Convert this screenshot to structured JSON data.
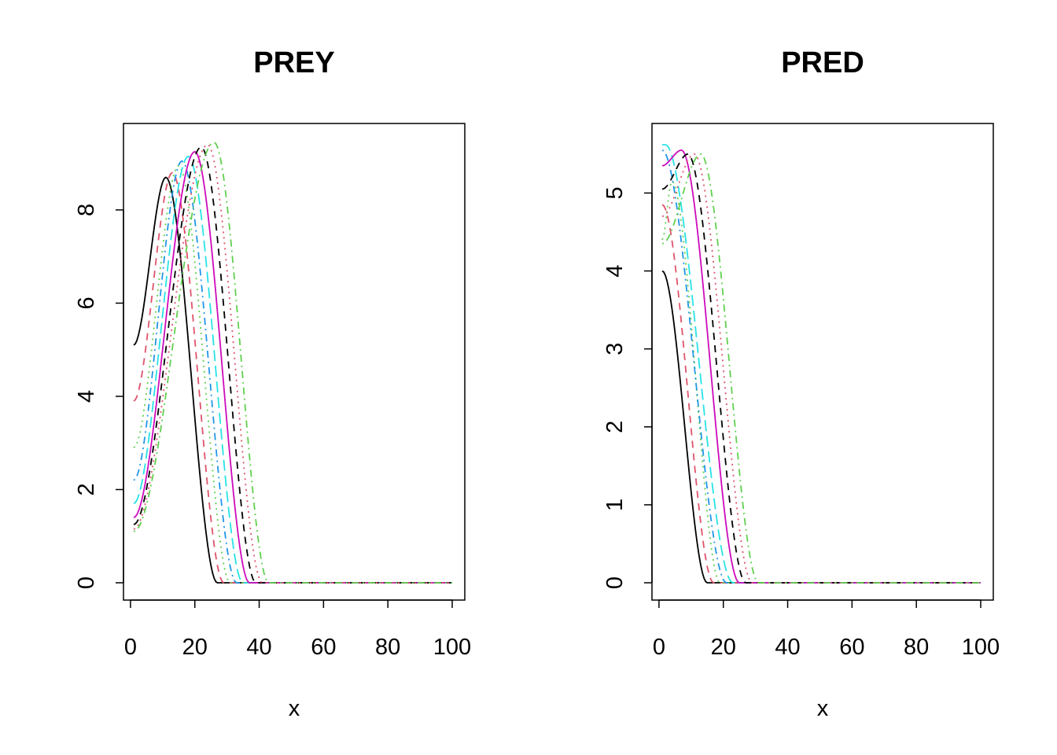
{
  "chart_data": [
    {
      "type": "line",
      "title": "PREY",
      "xlabel": "x",
      "ylabel": "",
      "xlim": [
        1,
        100
      ],
      "ylim": [
        0,
        9.45
      ],
      "xticks": [
        "0",
        "20",
        "40",
        "60",
        "80",
        "100"
      ],
      "yticks": [
        "0",
        "2",
        "4",
        "6",
        "8"
      ],
      "grid": false,
      "series": [
        {
          "color": "#000000",
          "dash": "solid",
          "initial": 5.1,
          "peak_x": 11,
          "peak_y": 8.7,
          "decay_end_x": 27
        },
        {
          "color": "#DF536B",
          "dash": "dashed",
          "initial": 3.9,
          "peak_x": 13,
          "peak_y": 8.8,
          "decay_end_x": 29
        },
        {
          "color": "#61D04F",
          "dash": "dotted",
          "initial": 2.9,
          "peak_x": 15,
          "peak_y": 8.95,
          "decay_end_x": 31
        },
        {
          "color": "#2297E6",
          "dash": "dotdash",
          "initial": 2.2,
          "peak_x": 16,
          "peak_y": 9.05,
          "decay_end_x": 33
        },
        {
          "color": "#28E2E5",
          "dash": "longdash",
          "initial": 1.7,
          "peak_x": 18,
          "peak_y": 9.15,
          "decay_end_x": 35
        },
        {
          "color": "#CD0BBC",
          "dash": "solid",
          "initial": 1.4,
          "peak_x": 20,
          "peak_y": 9.25,
          "decay_end_x": 37
        },
        {
          "color": "#000000",
          "dash": "dashed",
          "initial": 1.25,
          "peak_x": 22,
          "peak_y": 9.35,
          "decay_end_x": 39
        },
        {
          "color": "#DF536B",
          "dash": "dotted",
          "initial": 1.15,
          "peak_x": 24,
          "peak_y": 9.4,
          "decay_end_x": 41
        },
        {
          "color": "#61D04F",
          "dash": "dotdash",
          "initial": 1.1,
          "peak_x": 26,
          "peak_y": 9.45,
          "decay_end_x": 43
        }
      ]
    },
    {
      "type": "line",
      "title": "PRED",
      "xlabel": "x",
      "ylabel": "",
      "xlim": [
        1,
        100
      ],
      "ylim": [
        0,
        5.65
      ],
      "xticks": [
        "0",
        "20",
        "40",
        "60",
        "80",
        "100"
      ],
      "yticks": [
        "0",
        "1",
        "2",
        "3",
        "4",
        "5"
      ],
      "grid": false,
      "series": [
        {
          "color": "#000000",
          "dash": "solid",
          "initial": 4.0,
          "peak_x": 1,
          "peak_y": 4.0,
          "decay_end_x": 15
        },
        {
          "color": "#DF536B",
          "dash": "dashed",
          "initial": 4.85,
          "peak_x": 1,
          "peak_y": 4.85,
          "decay_end_x": 17
        },
        {
          "color": "#61D04F",
          "dash": "dotted",
          "initial": 4.4,
          "peak_x": 4,
          "peak_y": 5.15,
          "decay_end_x": 19
        },
        {
          "color": "#2297E6",
          "dash": "dotdash",
          "initial": 5.55,
          "peak_x": 1,
          "peak_y": 5.55,
          "decay_end_x": 21
        },
        {
          "color": "#28E2E5",
          "dash": "longdash",
          "initial": 5.62,
          "peak_x": 2,
          "peak_y": 5.62,
          "decay_end_x": 23
        },
        {
          "color": "#CD0BBC",
          "dash": "solid",
          "initial": 5.35,
          "peak_x": 7,
          "peak_y": 5.55,
          "decay_end_x": 25
        },
        {
          "color": "#000000",
          "dash": "dashed",
          "initial": 5.05,
          "peak_x": 9,
          "peak_y": 5.5,
          "decay_end_x": 27
        },
        {
          "color": "#DF536B",
          "dash": "dotted",
          "initial": 4.7,
          "peak_x": 11,
          "peak_y": 5.5,
          "decay_end_x": 29
        },
        {
          "color": "#61D04F",
          "dash": "dotdash",
          "initial": 4.35,
          "peak_x": 13,
          "peak_y": 5.5,
          "decay_end_x": 31
        }
      ]
    }
  ]
}
